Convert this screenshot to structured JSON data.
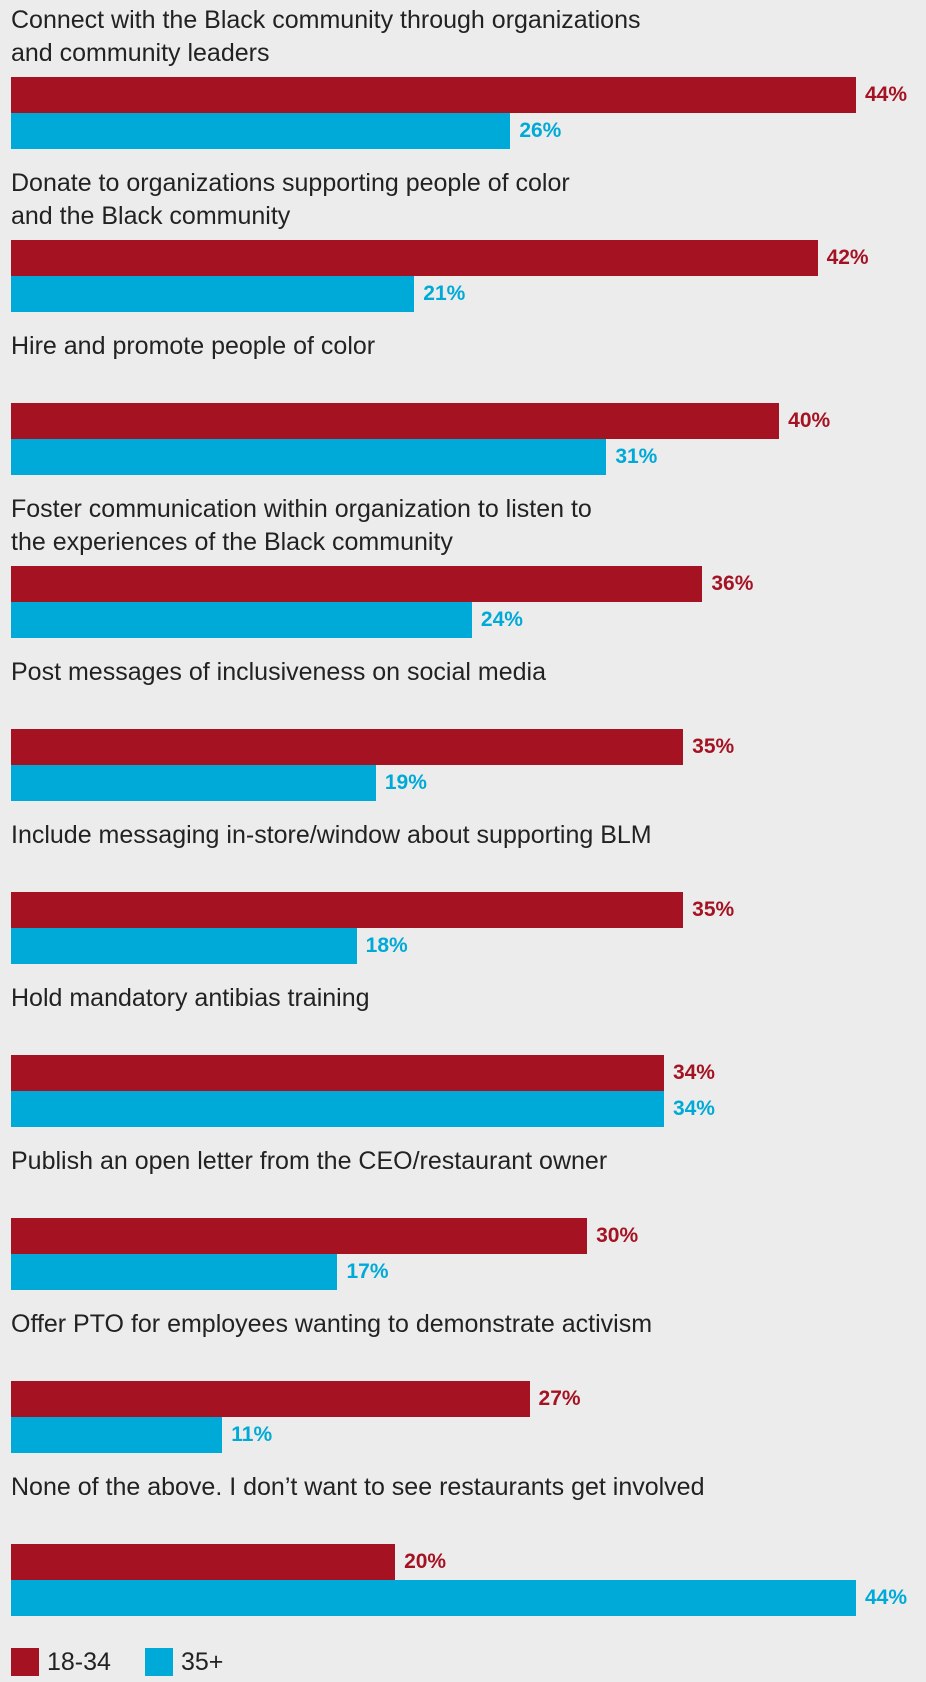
{
  "chart_data": {
    "type": "bar",
    "orientation": "horizontal",
    "categories": [
      "Connect with the Black community through organizations\nand community leaders",
      "Donate to organizations supporting people of color\nand the Black community",
      "Hire and promote people of color",
      "Foster communication within organization to listen to\nthe experiences of the Black community",
      "Post messages of inclusiveness on social media",
      "Include messaging in-store/window about supporting BLM",
      "Hold mandatory antibias training",
      "Publish an open letter from the CEO/restaurant owner",
      "Offer PTO for employees wanting to demonstrate activism",
      "None of the above. I don’t want to see restaurants get involved"
    ],
    "series": [
      {
        "name": "18-34",
        "color": "#a51323",
        "values": [
          44,
          42,
          40,
          36,
          35,
          35,
          34,
          30,
          27,
          20
        ]
      },
      {
        "name": "35+",
        "color": "#00aad8",
        "values": [
          26,
          21,
          31,
          24,
          19,
          18,
          34,
          17,
          11,
          44
        ]
      }
    ],
    "value_suffix": "%",
    "xlim": [
      0,
      44
    ],
    "grid": false,
    "legend_position": "bottom-left"
  }
}
